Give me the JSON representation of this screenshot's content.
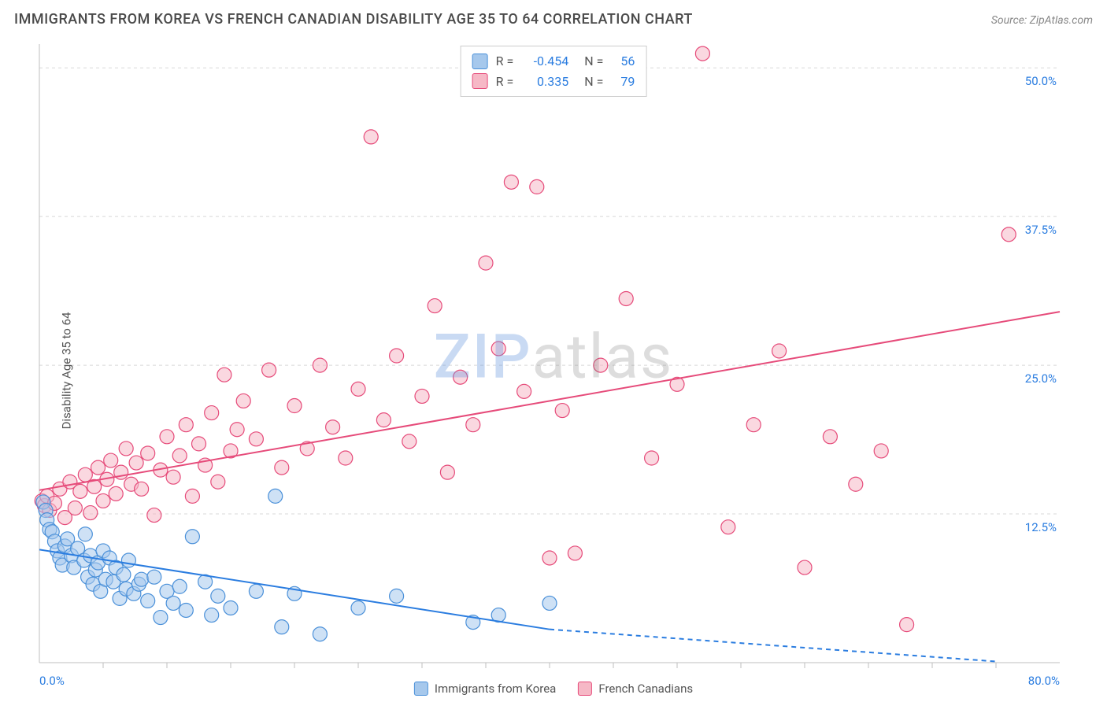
{
  "title": "IMMIGRANTS FROM KOREA VS FRENCH CANADIAN DISABILITY AGE 35 TO 64 CORRELATION CHART",
  "source": "Source: ZipAtlas.com",
  "ylabel": "Disability Age 35 to 64",
  "watermark_z": "ZIP",
  "watermark_rest": "atlas",
  "xlim": [
    0,
    80
  ],
  "ylim": [
    0,
    52
  ],
  "xticks": [
    0,
    80
  ],
  "xtick_labels": [
    "0.0%",
    "80.0%"
  ],
  "yticks": [
    12.5,
    25.0,
    37.5,
    50.0
  ],
  "ytick_labels": [
    "12.5%",
    "25.0%",
    "37.5%",
    "50.0%"
  ],
  "minor_xticks": [
    5,
    10,
    15,
    20,
    25,
    30,
    35,
    40,
    45,
    50,
    55,
    60,
    65,
    70,
    75
  ],
  "grid_color": "#d8d8d8",
  "axis_color": "#bfbfbf",
  "background_color": "#ffffff",
  "series": [
    {
      "name": "Immigrants from Korea",
      "fill": "#a6c8ec",
      "stroke": "#4a90d9",
      "fill_opacity": 0.55,
      "marker_radius": 9,
      "trend": {
        "x1": 0,
        "y1": 9.5,
        "x2": 40,
        "y2": 2.8,
        "dash_x2": 75,
        "dash_y2": -3,
        "color": "#2b7de0",
        "width": 2
      },
      "stats": {
        "R": "-0.454",
        "N": "56"
      },
      "points": [
        [
          0.3,
          13.5
        ],
        [
          0.5,
          12.8
        ],
        [
          0.6,
          12.0
        ],
        [
          0.8,
          11.2
        ],
        [
          1.0,
          11.0
        ],
        [
          1.2,
          10.2
        ],
        [
          1.4,
          9.4
        ],
        [
          1.6,
          8.8
        ],
        [
          1.8,
          8.2
        ],
        [
          2.0,
          9.8
        ],
        [
          2.2,
          10.4
        ],
        [
          2.5,
          9.0
        ],
        [
          2.7,
          8.0
        ],
        [
          3.0,
          9.6
        ],
        [
          3.5,
          8.6
        ],
        [
          3.6,
          10.8
        ],
        [
          3.8,
          7.2
        ],
        [
          4.0,
          9.0
        ],
        [
          4.2,
          6.6
        ],
        [
          4.4,
          7.8
        ],
        [
          4.6,
          8.4
        ],
        [
          4.8,
          6.0
        ],
        [
          5.0,
          9.4
        ],
        [
          5.2,
          7.0
        ],
        [
          5.5,
          8.8
        ],
        [
          5.8,
          6.8
        ],
        [
          6.0,
          8.0
        ],
        [
          6.3,
          5.4
        ],
        [
          6.6,
          7.4
        ],
        [
          6.8,
          6.2
        ],
        [
          7.0,
          8.6
        ],
        [
          7.4,
          5.8
        ],
        [
          7.8,
          6.6
        ],
        [
          8.0,
          7.0
        ],
        [
          8.5,
          5.2
        ],
        [
          9.0,
          7.2
        ],
        [
          9.5,
          3.8
        ],
        [
          10.0,
          6.0
        ],
        [
          10.5,
          5.0
        ],
        [
          11.0,
          6.4
        ],
        [
          11.5,
          4.4
        ],
        [
          12.0,
          10.6
        ],
        [
          13.0,
          6.8
        ],
        [
          13.5,
          4.0
        ],
        [
          14.0,
          5.6
        ],
        [
          15.0,
          4.6
        ],
        [
          17.0,
          6.0
        ],
        [
          18.5,
          14.0
        ],
        [
          19.0,
          3.0
        ],
        [
          20.0,
          5.8
        ],
        [
          22.0,
          2.4
        ],
        [
          25.0,
          4.6
        ],
        [
          28.0,
          5.6
        ],
        [
          34.0,
          3.4
        ],
        [
          36.0,
          4.0
        ],
        [
          40.0,
          5.0
        ]
      ]
    },
    {
      "name": "French Canadians",
      "fill": "#f6b8c6",
      "stroke": "#e64b7a",
      "fill_opacity": 0.55,
      "marker_radius": 9,
      "trend": {
        "x1": 0,
        "y1": 14.5,
        "x2": 80,
        "y2": 29.5,
        "color": "#e64b7a",
        "width": 2
      },
      "stats": {
        "R": " 0.335",
        "N": "79"
      },
      "points": [
        [
          0.2,
          13.6
        ],
        [
          0.4,
          13.2
        ],
        [
          0.6,
          14.0
        ],
        [
          0.8,
          12.8
        ],
        [
          1.2,
          13.4
        ],
        [
          1.6,
          14.6
        ],
        [
          2.0,
          12.2
        ],
        [
          2.4,
          15.2
        ],
        [
          2.8,
          13.0
        ],
        [
          3.2,
          14.4
        ],
        [
          3.6,
          15.8
        ],
        [
          4.0,
          12.6
        ],
        [
          4.3,
          14.8
        ],
        [
          4.6,
          16.4
        ],
        [
          5.0,
          13.6
        ],
        [
          5.3,
          15.4
        ],
        [
          5.6,
          17.0
        ],
        [
          6.0,
          14.2
        ],
        [
          6.4,
          16.0
        ],
        [
          6.8,
          18.0
        ],
        [
          7.2,
          15.0
        ],
        [
          7.6,
          16.8
        ],
        [
          8.0,
          14.6
        ],
        [
          8.5,
          17.6
        ],
        [
          9.0,
          12.4
        ],
        [
          9.5,
          16.2
        ],
        [
          10.0,
          19.0
        ],
        [
          10.5,
          15.6
        ],
        [
          11.0,
          17.4
        ],
        [
          11.5,
          20.0
        ],
        [
          12.0,
          14.0
        ],
        [
          12.5,
          18.4
        ],
        [
          13.0,
          16.6
        ],
        [
          13.5,
          21.0
        ],
        [
          14.0,
          15.2
        ],
        [
          14.5,
          24.2
        ],
        [
          15.0,
          17.8
        ],
        [
          15.5,
          19.6
        ],
        [
          16.0,
          22.0
        ],
        [
          17.0,
          18.8
        ],
        [
          18.0,
          24.6
        ],
        [
          19.0,
          16.4
        ],
        [
          20.0,
          21.6
        ],
        [
          21.0,
          18.0
        ],
        [
          22.0,
          25.0
        ],
        [
          23.0,
          19.8
        ],
        [
          24.0,
          17.2
        ],
        [
          25.0,
          23.0
        ],
        [
          26.0,
          44.2
        ],
        [
          27.0,
          20.4
        ],
        [
          28.0,
          25.8
        ],
        [
          29.0,
          18.6
        ],
        [
          30.0,
          22.4
        ],
        [
          31.0,
          30.0
        ],
        [
          32.0,
          16.0
        ],
        [
          33.0,
          24.0
        ],
        [
          34.0,
          20.0
        ],
        [
          35.0,
          33.6
        ],
        [
          36.0,
          26.4
        ],
        [
          37.0,
          40.4
        ],
        [
          38.0,
          22.8
        ],
        [
          39.0,
          40.0
        ],
        [
          40.0,
          8.8
        ],
        [
          41.0,
          21.2
        ],
        [
          42.0,
          9.2
        ],
        [
          44.0,
          25.0
        ],
        [
          46.0,
          30.6
        ],
        [
          48.0,
          17.2
        ],
        [
          50.0,
          23.4
        ],
        [
          52.0,
          51.2
        ],
        [
          54.0,
          11.4
        ],
        [
          56.0,
          20.0
        ],
        [
          58.0,
          26.2
        ],
        [
          60.0,
          8.0
        ],
        [
          62.0,
          19.0
        ],
        [
          64.0,
          15.0
        ],
        [
          66.0,
          17.8
        ],
        [
          68.0,
          3.2
        ],
        [
          76.0,
          36.0
        ]
      ]
    }
  ],
  "legend": {
    "items": [
      {
        "label": "Immigrants from Korea",
        "fill": "#a6c8ec",
        "stroke": "#4a90d9"
      },
      {
        "label": "French Canadians",
        "fill": "#f6b8c6",
        "stroke": "#e64b7a"
      }
    ]
  }
}
